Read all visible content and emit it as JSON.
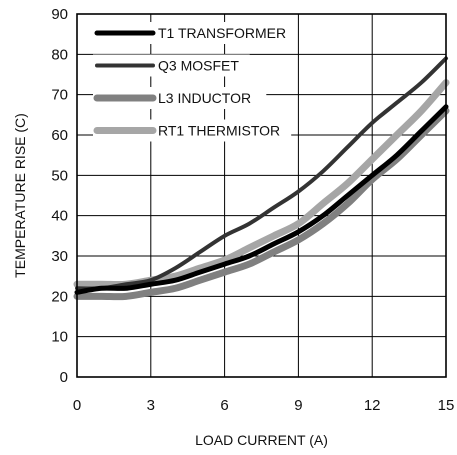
{
  "chart_data": {
    "type": "line",
    "title": "",
    "xlabel": "LOAD CURRENT (A)",
    "ylabel": "TEMPERATURE RISE (C)",
    "xlim": [
      0,
      15
    ],
    "ylim": [
      0,
      90
    ],
    "xticks": [
      0,
      3,
      6,
      9,
      12,
      15
    ],
    "yticks": [
      0,
      10,
      20,
      30,
      40,
      50,
      60,
      70,
      80,
      90
    ],
    "grid": true,
    "legend_position": "top-left",
    "series": [
      {
        "name": "T1 TRANSFORMER",
        "color": "#000000",
        "x": [
          0,
          1,
          2,
          3,
          4,
          5,
          6,
          7,
          8,
          9,
          10,
          11,
          12,
          13,
          14,
          15
        ],
        "y": [
          21,
          22,
          22,
          23,
          24,
          26,
          28,
          30,
          33,
          36,
          40,
          45,
          50,
          55,
          61,
          67
        ]
      },
      {
        "name": "Q3 MOSFET",
        "color": "#333333",
        "x": [
          0,
          1,
          2,
          3,
          4,
          5,
          6,
          7,
          8,
          9,
          10,
          11,
          12,
          13,
          14,
          15
        ],
        "y": [
          22,
          22,
          23,
          24,
          27,
          31,
          35,
          38,
          42,
          46,
          51,
          57,
          63,
          68,
          73,
          79
        ]
      },
      {
        "name": "L3 INDUCTOR",
        "color": "#808080",
        "x": [
          0,
          1,
          2,
          3,
          4,
          5,
          6,
          7,
          8,
          9,
          10,
          11,
          12,
          13,
          14,
          15
        ],
        "y": [
          20,
          20,
          20,
          21,
          22,
          24,
          26,
          28,
          31,
          34,
          38,
          43,
          49,
          54,
          60,
          66
        ]
      },
      {
        "name": "RT1 THERMISTOR",
        "color": "#a6a6a6",
        "x": [
          0,
          1,
          2,
          3,
          4,
          5,
          6,
          7,
          8,
          9,
          10,
          11,
          12,
          13,
          14,
          15
        ],
        "y": [
          23,
          23,
          23,
          24,
          25,
          27,
          29,
          32,
          35,
          38,
          43,
          48,
          54,
          60,
          66,
          73
        ]
      }
    ]
  }
}
